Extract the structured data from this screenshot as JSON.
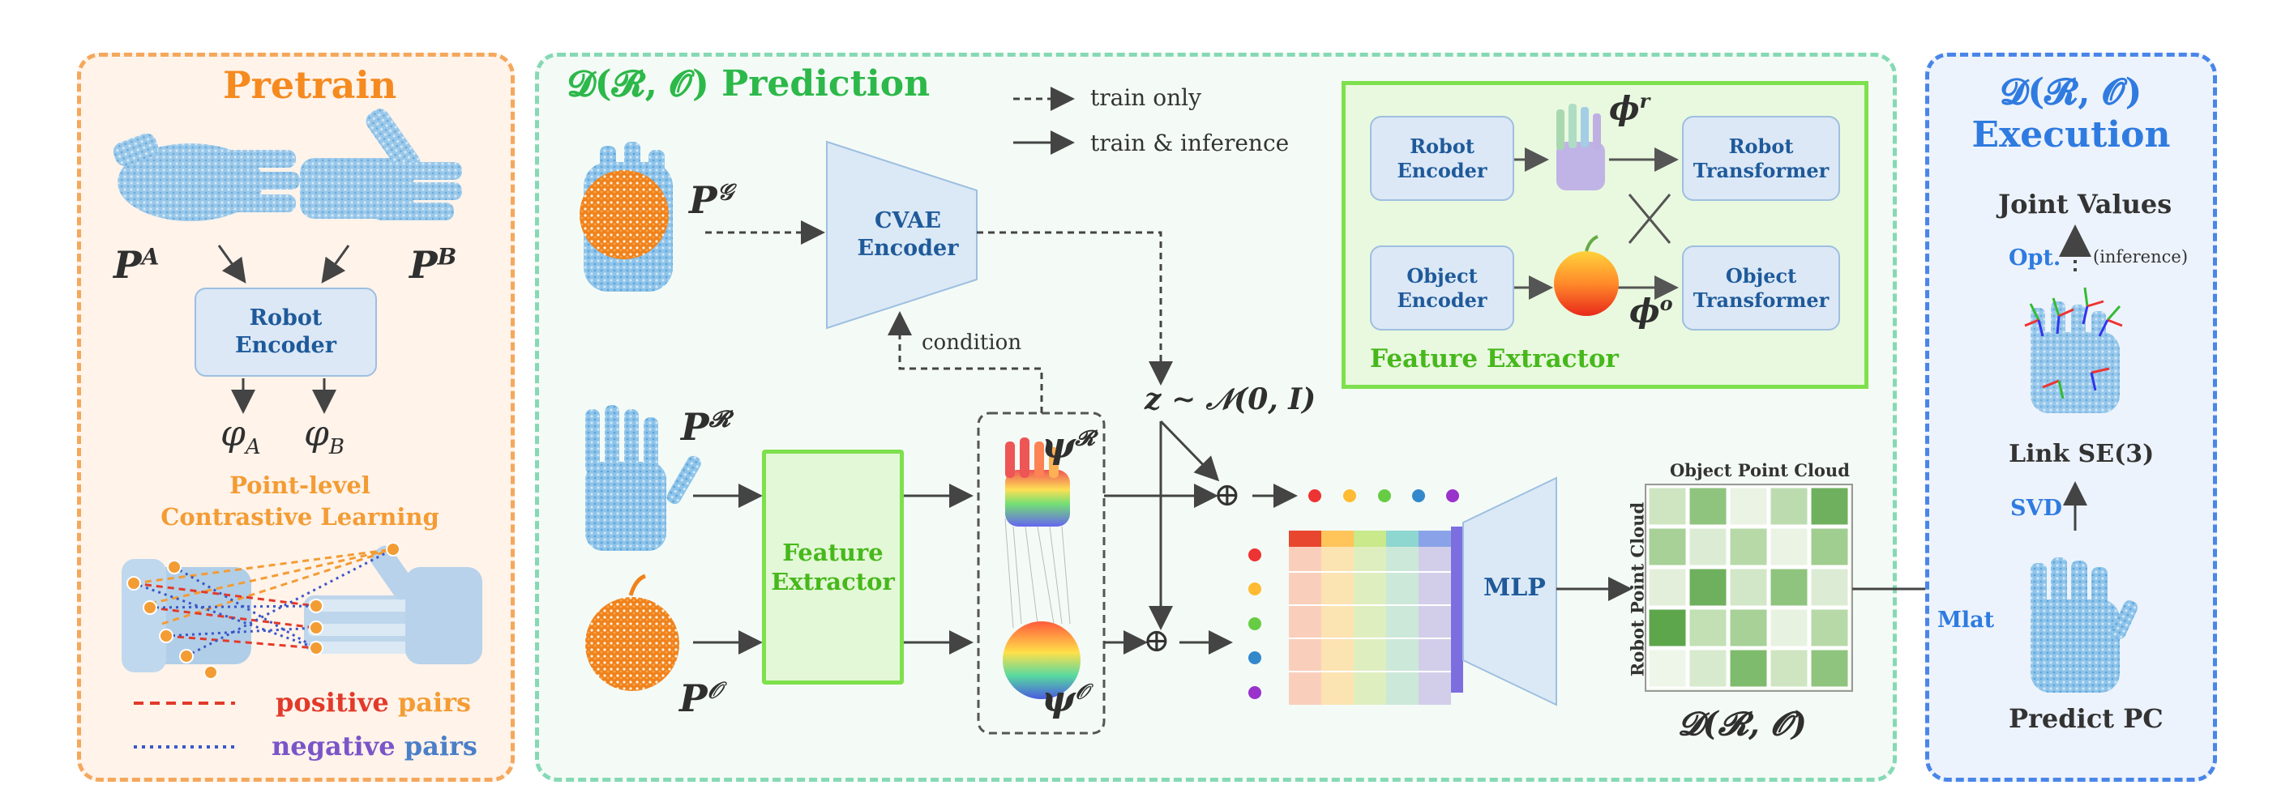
{
  "pretrain": {
    "title": "Pretrain",
    "p_a": "P",
    "p_a_sup": "A",
    "p_b": "P",
    "p_b_sup": "B",
    "encoder": [
      "Robot",
      "Encoder"
    ],
    "phi_a": "φ",
    "phi_a_sub": "A",
    "phi_b": "φ",
    "phi_b_sub": "B",
    "cl_label": [
      "Point-level",
      "Contrastive Learning"
    ],
    "positive_word": "positive",
    "positive_pairs": "pairs",
    "negative_word": "negative",
    "negative_pairs": "pairs"
  },
  "prediction": {
    "title": "𝓓(𝓡, 𝓞) Prediction",
    "legend": {
      "train_only": "train only",
      "train_inference": "train & inference"
    },
    "p_g": "P",
    "p_g_sup": "𝒢",
    "cvae": [
      "CVAE",
      "Encoder"
    ],
    "condition": "condition",
    "p_r": "P",
    "p_r_sup": "𝓡",
    "p_o": "P",
    "p_o_sup": "𝒪",
    "feature_extractor": [
      "Feature",
      "Extractor"
    ],
    "psi_r": "ψ",
    "psi_r_sup": "𝓡",
    "psi_o": "ψ",
    "psi_o_sup": "𝒪",
    "z_label": "z ∼ 𝒩(0, I)",
    "oplus": "⊕",
    "mlp": "MLP",
    "matrix_top": "Object Point Cloud",
    "matrix_side": "Robot Point Cloud",
    "d_label": "𝓓(𝓡, 𝓞)",
    "fe_panel": {
      "title": "Feature Extractor",
      "robot_encoder": [
        "Robot",
        "Encoder"
      ],
      "object_encoder": [
        "Object",
        "Encoder"
      ],
      "robot_transformer": [
        "Robot",
        "Transformer"
      ],
      "object_transformer": [
        "Object",
        "Transformer"
      ],
      "phi_r": "ϕ",
      "phi_r_sup": "r",
      "phi_o": "ϕ",
      "phi_o_sup": "o"
    }
  },
  "execution": {
    "title": [
      "𝓓(𝓡, 𝓞)",
      "Execution"
    ],
    "joint_values": "Joint Values",
    "opt": "Opt.",
    "inference": "(inference)",
    "link_se3": "Link SE(3)",
    "svd": "SVD",
    "mlat": "Mlat",
    "predict_pc": "Predict PC"
  },
  "colors": {
    "pretrain_border": "#f4a85c",
    "pretrain_bg": "#fff3ea",
    "prediction_border": "#86d9b4",
    "prediction_bg": "#f4fbf6",
    "execution_border": "#4a86e8",
    "execution_bg": "#edf3fc",
    "pretrain_title": "#f58a1f",
    "prediction_title": "#2db84a",
    "execution_title": "#2f7be0",
    "positive": "#e23a2a",
    "positive_pairs": "#f39c34",
    "negative": "#7a55c8",
    "negative_pairs": "#4a7fc8"
  },
  "icons": [
    "lock-icon",
    "hand-pointcloud",
    "apple-pointcloud",
    "arrow-icon"
  ]
}
